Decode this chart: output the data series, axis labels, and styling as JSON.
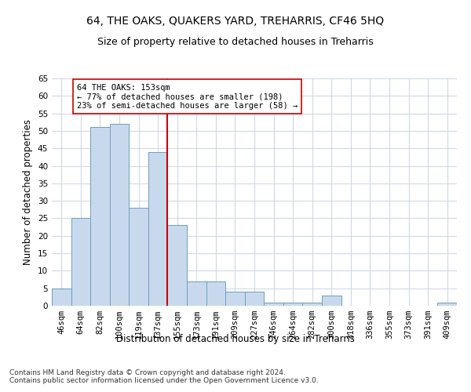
{
  "title": "64, THE OAKS, QUAKERS YARD, TREHARRIS, CF46 5HQ",
  "subtitle": "Size of property relative to detached houses in Treharris",
  "xlabel": "Distribution of detached houses by size in Treharris",
  "ylabel": "Number of detached properties",
  "categories": [
    "46sqm",
    "64sqm",
    "82sqm",
    "100sqm",
    "119sqm",
    "137sqm",
    "155sqm",
    "173sqm",
    "191sqm",
    "209sqm",
    "227sqm",
    "246sqm",
    "264sqm",
    "282sqm",
    "300sqm",
    "318sqm",
    "336sqm",
    "355sqm",
    "373sqm",
    "391sqm",
    "409sqm"
  ],
  "values": [
    5,
    25,
    51,
    52,
    28,
    44,
    23,
    7,
    7,
    4,
    4,
    1,
    1,
    1,
    3,
    0,
    0,
    0,
    0,
    0,
    1
  ],
  "bar_color": "#c9d9ed",
  "bar_edge_color": "#6a9fc0",
  "vline_index": 6,
  "vline_color": "#cc0000",
  "annotation_line1": "64 THE OAKS: 153sqm",
  "annotation_line2": "← 77% of detached houses are smaller (198)",
  "annotation_line3": "23% of semi-detached houses are larger (58) →",
  "annotation_box_color": "white",
  "annotation_box_edge": "#cc0000",
  "ylim": [
    0,
    65
  ],
  "yticks": [
    0,
    5,
    10,
    15,
    20,
    25,
    30,
    35,
    40,
    45,
    50,
    55,
    60,
    65
  ],
  "title_fontsize": 10,
  "subtitle_fontsize": 9,
  "xlabel_fontsize": 8.5,
  "ylabel_fontsize": 8.5,
  "tick_fontsize": 7.5,
  "annotation_fontsize": 7.5,
  "footer_text": "Contains HM Land Registry data © Crown copyright and database right 2024.\nContains public sector information licensed under the Open Government Licence v3.0.",
  "footer_fontsize": 6.5,
  "background_color": "#ffffff",
  "grid_color": "#d0d8e8"
}
